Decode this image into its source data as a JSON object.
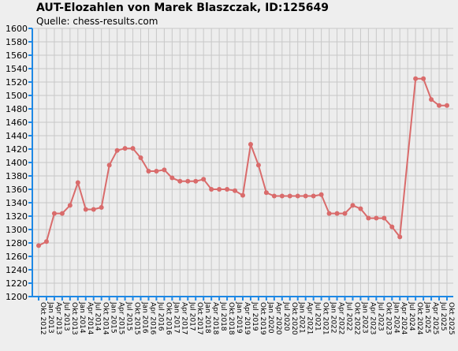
{
  "chart_data": {
    "type": "line",
    "title": "AUT-Elozahlen von Marek Blaszczak, ID:125649",
    "subtitle": "Quelle: chess-results.com",
    "xlabel": "",
    "ylabel": "",
    "ylim": [
      1200,
      1600
    ],
    "ytick_step": 20,
    "grid": true,
    "categories": [
      "Okt 2012",
      "Jan 2013",
      "Apr 2013",
      "Jul 2013",
      "Okt 2013",
      "Jan 2014",
      "Apr 2014",
      "Jul 2014",
      "Okt 2014",
      "Jan 2015",
      "Apr 2015",
      "Jul 2015",
      "Okt 2015",
      "Jan 2016",
      "Apr 2016",
      "Jul 2016",
      "Okt 2016",
      "Jan 2017",
      "Apr 2017",
      "Jul 2017",
      "Okt 2017",
      "Jan 2018",
      "Apr 2018",
      "Jul 2018",
      "Okt 2018",
      "Jan 2019",
      "Apr 2019",
      "Jul 2019",
      "Okt 2019",
      "Jan 2020",
      "Apr 2020",
      "Jul 2020",
      "Okt 2020",
      "Jan 2021",
      "Apr 2021",
      "Jul 2021",
      "Okt 2021",
      "Jan 2022",
      "Apr 2022",
      "Jul 2022",
      "Okt 2022",
      "Jan 2023",
      "Apr 2023",
      "Jul 2023",
      "Okt 2023",
      "Jan 2024",
      "Apr 2024",
      "Jul 2024",
      "Okt 2024",
      "Jan 2025",
      "Apr 2025",
      "Jul 2025",
      "Okt 2025"
    ],
    "series": [
      {
        "name": "",
        "color": "#d96b6b",
        "values": [
          1276,
          1282,
          1324,
          1324,
          1336,
          1370,
          1330,
          1330,
          1333,
          1396,
          1418,
          1421,
          1421,
          1407,
          1387,
          1387,
          1389,
          1377,
          1372,
          1372,
          1372,
          1375,
          1360,
          1360,
          1360,
          1358,
          1351,
          1427,
          1396,
          1355,
          1350,
          1350,
          1350,
          1350,
          1350,
          1350,
          1352,
          1324,
          1324,
          1324,
          1336,
          1331,
          1317,
          1317,
          1317,
          1304,
          1289,
          null,
          1525,
          1525,
          1494,
          1485,
          1485
        ]
      }
    ],
    "colors": {
      "background": "#eeeeee",
      "grid": "#c8c8c8",
      "axis": "#1e88e5",
      "line": "#d96b6b"
    }
  }
}
